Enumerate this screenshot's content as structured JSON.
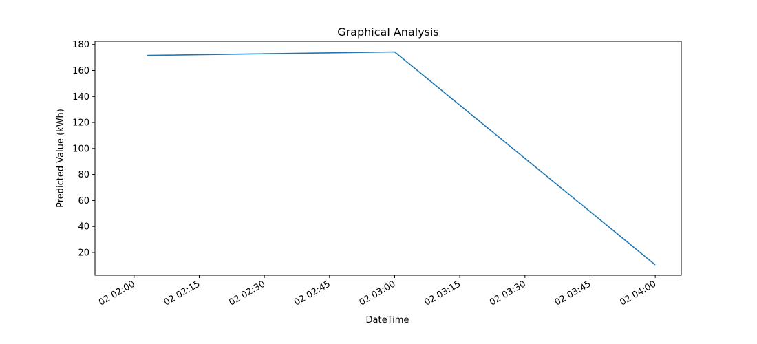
{
  "chart_data": {
    "type": "line",
    "title": "Graphical Analysis",
    "xlabel": "DateTime",
    "ylabel": "Predicted Value (kWh)",
    "xtick_labels": [
      "02 02:00",
      "02 02:15",
      "02 02:30",
      "02 02:45",
      "02 03:00",
      "02 03:15",
      "02 03:30",
      "02 03:45",
      "02 04:00"
    ],
    "ytick_labels": [
      "20",
      "40",
      "60",
      "80",
      "100",
      "120",
      "140",
      "160",
      "180"
    ],
    "x_ticks": [
      "02:00",
      "02:15",
      "02:30",
      "02:45",
      "03:00",
      "03:15",
      "03:30",
      "03:45",
      "04:00"
    ],
    "y_ticks": [
      20,
      40,
      60,
      80,
      100,
      120,
      140,
      160,
      180
    ],
    "xlim": [
      "01:51",
      "04:06"
    ],
    "ylim": [
      2.5,
      182.5
    ],
    "grid": false,
    "line_color": "#1f77b4",
    "series": [
      {
        "x": [
          "02:03",
          "03:00",
          "04:00"
        ],
        "values": [
          171.6,
          174.3,
          10.5
        ]
      }
    ]
  }
}
